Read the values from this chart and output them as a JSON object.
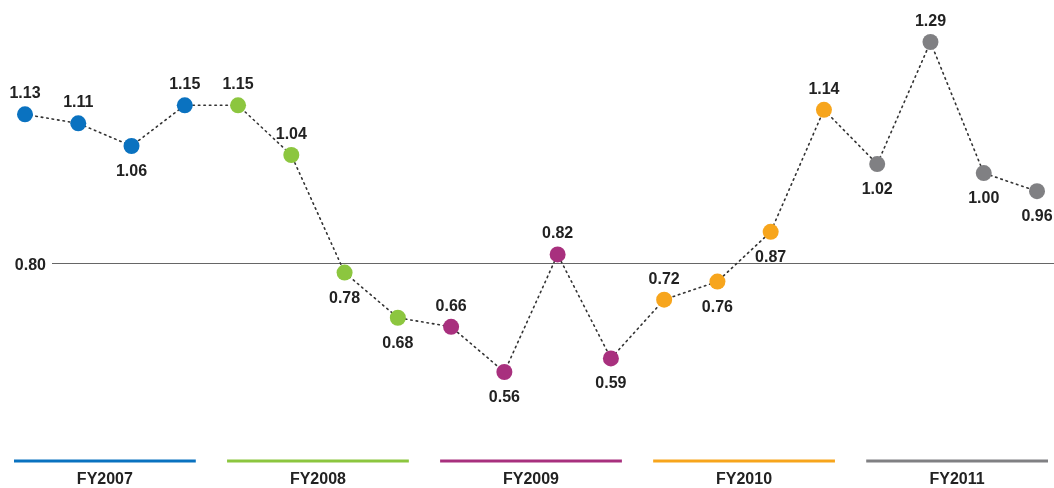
{
  "chart_data": {
    "type": "line",
    "categories": [
      null,
      null,
      null,
      null,
      null,
      null,
      null,
      null,
      null,
      null,
      null,
      null,
      null,
      null,
      null,
      null,
      null,
      null,
      null,
      null
    ],
    "marker": "circle",
    "line_style": "dotted",
    "ref_lines": [
      {
        "axis": "y",
        "value": 0.8,
        "label": "0.80",
        "color": "#666666"
      }
    ],
    "annotations": [
      "FY2007",
      "FY2008",
      "FY2009",
      "FY2010",
      "FY2011"
    ],
    "series": [
      {
        "color": "#333333",
        "values": [
          1.13,
          1.11,
          1.06,
          1.15,
          1.15,
          1.04,
          0.78,
          0.68,
          0.66,
          0.56,
          0.82,
          0.59,
          0.72,
          0.76,
          0.87,
          1.14,
          1.02,
          1.29,
          1.0,
          0.96
        ],
        "value_labels": [
          "1.13",
          "1.11",
          "1.06",
          "1.15",
          "1.15",
          "1.04",
          "0.78",
          "0.68",
          "0.66",
          "0.56",
          "0.82",
          "0.59",
          "0.72",
          "0.76",
          "0.87",
          "1.14",
          "1.02",
          "1.29",
          "1.00",
          "0.96"
        ],
        "colors": [
          "#0a72c0",
          "#0a72c0",
          "#0a72c0",
          "#0a72c0",
          "#8cc63f",
          "#8cc63f",
          "#8cc63f",
          "#8cc63f",
          "#a8307e",
          "#a8307e",
          "#a8307e",
          "#a8307e",
          "#f7a51c",
          "#f7a51c",
          "#f7a51c",
          "#f7a51c",
          "#808083",
          "#808083",
          "#808083",
          "#808083"
        ]
      }
    ]
  }
}
